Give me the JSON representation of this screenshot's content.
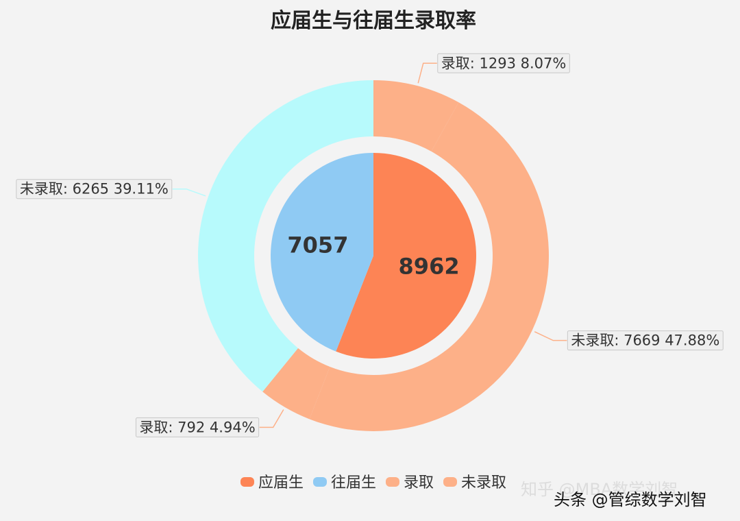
{
  "chart_data": {
    "type": "pie",
    "title": "应届生与往届生录取率",
    "inner": {
      "slices": [
        {
          "name": "应届生",
          "value": 8962,
          "color": "#fd8455"
        },
        {
          "name": "往届生",
          "value": 7057,
          "color": "#8fcaf3"
        }
      ]
    },
    "outer": {
      "slices": [
        {
          "name": "录取",
          "group": "应届生",
          "value": 1293,
          "percent": "8.07%",
          "label": "录取: 1293  8.07%",
          "color": "#fdb088"
        },
        {
          "name": "未录取",
          "group": "应届生",
          "value": 7669,
          "percent": "47.88%",
          "label": "未录取: 7669  47.88%",
          "color": "#fdb088"
        },
        {
          "name": "录取",
          "group": "往届生",
          "value": 792,
          "percent": "4.94%",
          "label": "录取: 792  4.94%",
          "color": "#fdb088"
        },
        {
          "name": "未录取",
          "group": "往届生",
          "value": 6265,
          "percent": "39.11%",
          "label": "未录取: 6265  39.11%",
          "color": "#b7fafc"
        }
      ]
    },
    "legend": {
      "position": "bottom",
      "items": [
        {
          "name": "应届生",
          "color": "#fd8455"
        },
        {
          "name": "往届生",
          "color": "#8fcaf3"
        },
        {
          "name": "录取",
          "color": "#fdb088"
        },
        {
          "name": "未录取",
          "color": "#fdb088"
        }
      ]
    }
  },
  "watermark": {
    "zhihu": "知乎 @MBA数学刘智",
    "toutiao": "头条 @管综数学刘智"
  }
}
